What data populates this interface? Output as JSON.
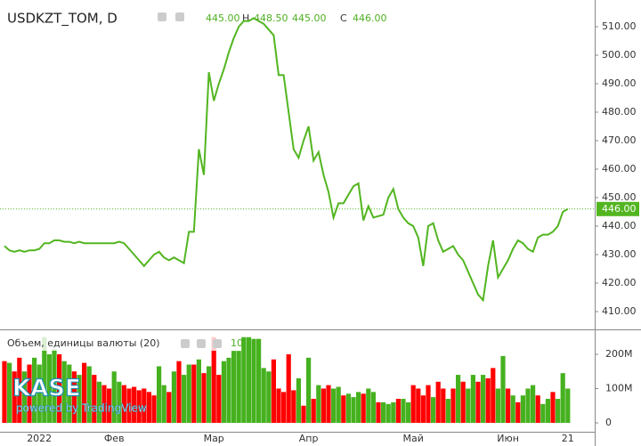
{
  "chart_data": {
    "type": "line",
    "title": "USDKZT_TOM, D",
    "ohlc": {
      "o_value": "445.00",
      "h_label": "H",
      "h_value": "448.50",
      "l_value": "445.00",
      "c_label": "C",
      "c_value": "446.00"
    },
    "x_labels": [
      {
        "index": 7,
        "label": "2022"
      },
      {
        "index": 22,
        "label": "Фев"
      },
      {
        "index": 42,
        "label": "Мар"
      },
      {
        "index": 61,
        "label": "Апр"
      },
      {
        "index": 82,
        "label": "Май"
      },
      {
        "index": 101,
        "label": "Июн"
      },
      {
        "index": 113,
        "label": "21"
      }
    ],
    "series": [
      {
        "name": "USDKZT_TOM",
        "color": "#52b520",
        "values": [
          433,
          431.5,
          431,
          431.5,
          431,
          431.5,
          431.5,
          432,
          434,
          434,
          435,
          435,
          434.5,
          434.5,
          434,
          434.5,
          434,
          434,
          434,
          434,
          434,
          434,
          434,
          434.5,
          434,
          432,
          430,
          428,
          426,
          428,
          430,
          431,
          429,
          428,
          429,
          428,
          427,
          438,
          438,
          467,
          458,
          494,
          484,
          490,
          495,
          501,
          506,
          510,
          512,
          512,
          513,
          512,
          511,
          509,
          507,
          493,
          493,
          480,
          467,
          464,
          470,
          475,
          463,
          466,
          458,
          452,
          443,
          448,
          448,
          451,
          454,
          455,
          442,
          447,
          443,
          443.5,
          444,
          450,
          453,
          446,
          443,
          441,
          440,
          436,
          426,
          440,
          441,
          435,
          431,
          432,
          433,
          430,
          428,
          424,
          420,
          416,
          414,
          426,
          435,
          422,
          425,
          428,
          432,
          435,
          434,
          432,
          431,
          436,
          437,
          437,
          438,
          440,
          445,
          446
        ]
      }
    ],
    "ylim": [
      403.75,
      519.375
    ],
    "yticks": [
      {
        "value": 410,
        "label": "410.00"
      },
      {
        "value": 420,
        "label": "420.00"
      },
      {
        "value": 430,
        "label": "430.00"
      },
      {
        "value": 440,
        "label": "440.00"
      },
      {
        "value": 450,
        "label": "450.00"
      },
      {
        "value": 460,
        "label": "460.00"
      },
      {
        "value": 470,
        "label": "470.00"
      },
      {
        "value": 480,
        "label": "480.00"
      },
      {
        "value": 490,
        "label": "490.00"
      },
      {
        "value": 500,
        "label": "500.00"
      },
      {
        "value": 510,
        "label": "510.00"
      }
    ],
    "last_price": {
      "value": 446,
      "label": "446.00"
    },
    "watermark": "KASE",
    "watermark_sub": "powered by TradingView",
    "volume": {
      "type": "bar",
      "title": "Объем, единицы валюты (20)",
      "current": "10",
      "values": [
        180,
        175,
        150,
        190,
        150,
        170,
        190,
        170,
        250,
        200,
        215,
        200,
        180,
        170,
        150,
        140,
        175,
        165,
        140,
        120,
        110,
        100,
        150,
        120,
        110,
        100,
        105,
        95,
        100,
        90,
        80,
        165,
        110,
        90,
        150,
        180,
        140,
        170,
        170,
        185,
        145,
        165,
        250,
        140,
        180,
        190,
        210,
        210,
        250,
        250,
        245,
        245,
        160,
        150,
        185,
        100,
        90,
        200,
        95,
        130,
        50,
        190,
        70,
        110,
        100,
        110,
        100,
        105,
        80,
        85,
        75,
        90,
        85,
        100,
        90,
        60,
        60,
        55,
        60,
        70,
        70,
        60,
        110,
        100,
        80,
        110,
        75,
        120,
        100,
        70,
        100,
        140,
        120,
        100,
        140,
        120,
        140,
        130,
        160,
        100,
        195,
        100,
        80,
        60,
        80,
        100,
        110,
        80,
        55,
        70,
        90,
        70,
        145,
        100
      ],
      "colors": "RGRRGRGGGGGRGGRGRGRGRRGGRRRRRRRGGRGRGGRGRGRRGGGGGGGGGGRRRRRGRGRGRRGGRGGGRGGRGGGRGGRRRRGRRGRGRGGRGRRGGRGRGGGRGGRGG",
      "up_color": "#46b11f",
      "down_color": "#ff0000",
      "ylim": [
        -26,
        267.5
      ],
      "yticks": [
        0,
        {
          "value": 100,
          "label": "100M"
        },
        {
          "value": 200,
          "label": "200M"
        }
      ]
    }
  }
}
